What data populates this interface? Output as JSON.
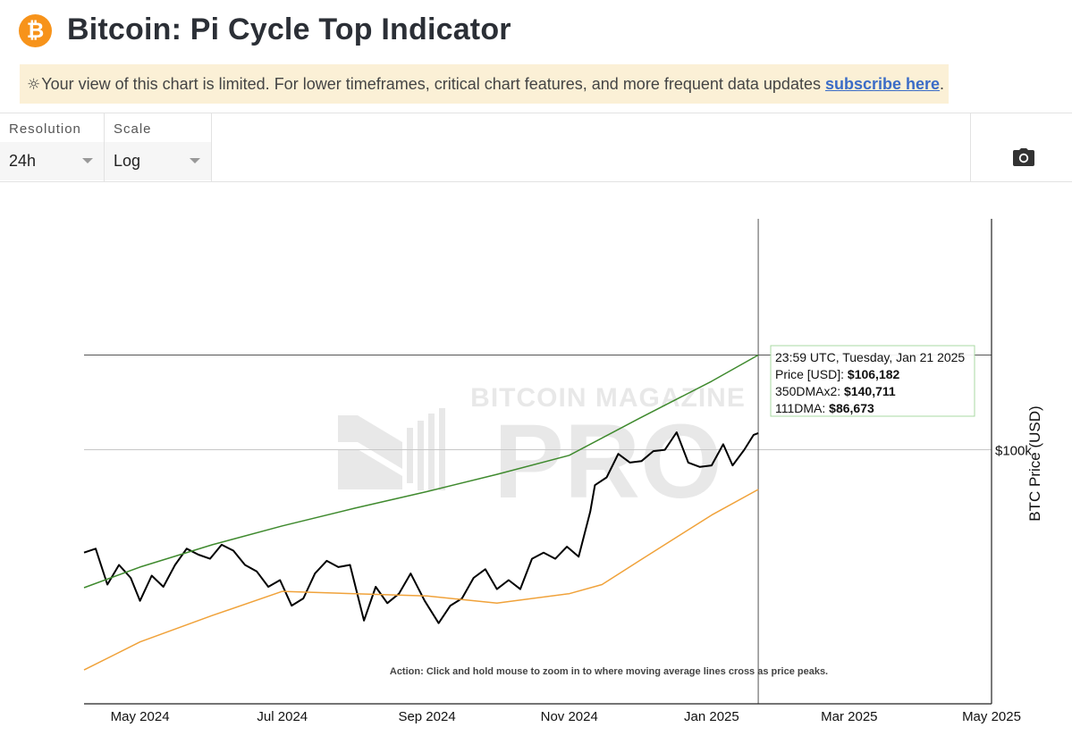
{
  "header": {
    "logo_glyph": "₿",
    "title": "Bitcoin: Pi Cycle Top Indicator"
  },
  "notice": {
    "icon": "sun-icon",
    "icon_glyph": "☼",
    "text": "Your view of this chart is limited. For lower timeframes, critical chart features, and more frequent data updates ",
    "link_text": "subscribe here",
    "suffix": "."
  },
  "controls": {
    "resolution": {
      "label": "Resolution",
      "value": "24h"
    },
    "scale": {
      "label": "Scale",
      "value": "Log"
    },
    "screenshot_icon": "camera-icon"
  },
  "chart_data": {
    "type": "line",
    "y_scale": "log",
    "ylabel": "BTC Price (USD)",
    "y_tick_labels": [
      "$100k"
    ],
    "x_tick_labels": [
      "May 2024",
      "Jul 2024",
      "Sep 2024",
      "Nov 2024",
      "Jan 2025",
      "Mar 2025",
      "May 2025"
    ],
    "x_tick_dates": [
      "2024-05-01",
      "2024-07-01",
      "2024-09-01",
      "2024-11-01",
      "2025-01-01",
      "2025-03-01",
      "2025-05-01"
    ],
    "x_range": [
      "2024-04-07",
      "2025-05-01"
    ],
    "y_range": [
      40000,
      230000
    ],
    "watermark": "BITCOIN MAGAZINE PRO",
    "annotation": "Action: Click and hold mouse to zoom in to where moving average lines cross as price peaks.",
    "colors": {
      "price": "#000000",
      "dma350x2": "#3f8a2e",
      "dma111": "#f0a23a"
    },
    "series": [
      {
        "name": "Price [USD]",
        "key": "price",
        "x": [
          "2024-04-07",
          "2024-04-12",
          "2024-04-17",
          "2024-04-22",
          "2024-04-27",
          "2024-05-01",
          "2024-05-06",
          "2024-05-11",
          "2024-05-16",
          "2024-05-21",
          "2024-05-26",
          "2024-05-31",
          "2024-06-05",
          "2024-06-10",
          "2024-06-15",
          "2024-06-20",
          "2024-06-25",
          "2024-06-30",
          "2024-07-05",
          "2024-07-10",
          "2024-07-15",
          "2024-07-20",
          "2024-07-25",
          "2024-07-30",
          "2024-08-05",
          "2024-08-10",
          "2024-08-15",
          "2024-08-20",
          "2024-08-25",
          "2024-08-31",
          "2024-09-06",
          "2024-09-11",
          "2024-09-16",
          "2024-09-21",
          "2024-09-26",
          "2024-10-01",
          "2024-10-06",
          "2024-10-11",
          "2024-10-16",
          "2024-10-21",
          "2024-10-26",
          "2024-10-31",
          "2024-11-05",
          "2024-11-10",
          "2024-11-12",
          "2024-11-17",
          "2024-11-22",
          "2024-11-27",
          "2024-12-02",
          "2024-12-07",
          "2024-12-12",
          "2024-12-17",
          "2024-12-22",
          "2024-12-27",
          "2025-01-01",
          "2025-01-06",
          "2025-01-10",
          "2025-01-15",
          "2025-01-19",
          "2025-01-21"
        ],
        "y": [
          69000,
          70000,
          61500,
          66000,
          63000,
          58000,
          63500,
          61000,
          66000,
          70000,
          68500,
          67500,
          71000,
          69500,
          66000,
          64500,
          61000,
          62500,
          57000,
          58500,
          64000,
          67000,
          65500,
          66000,
          54000,
          61000,
          57500,
          59500,
          64000,
          58000,
          53500,
          57000,
          58500,
          63000,
          65000,
          60500,
          62500,
          60500,
          67500,
          69000,
          67500,
          70500,
          68000,
          80000,
          88000,
          90500,
          98500,
          95500,
          96000,
          99500,
          100000,
          106500,
          95500,
          94000,
          94500,
          102000,
          94500,
          100000,
          105500,
          106182
        ]
      },
      {
        "name": "350DMAx2",
        "key": "dma350x2",
        "x": [
          "2024-04-07",
          "2024-05-01",
          "2024-06-01",
          "2024-07-01",
          "2024-08-01",
          "2024-09-01",
          "2024-10-01",
          "2024-11-01",
          "2024-12-01",
          "2025-01-01",
          "2025-01-21"
        ],
        "y": [
          60800,
          65500,
          71000,
          76000,
          81000,
          86000,
          91500,
          98000,
          112000,
          128000,
          140711
        ]
      },
      {
        "name": "111DMA",
        "key": "dma111",
        "x": [
          "2024-04-07",
          "2024-05-01",
          "2024-06-01",
          "2024-07-01",
          "2024-08-01",
          "2024-09-01",
          "2024-10-01",
          "2024-11-01",
          "2024-11-15",
          "2024-12-01",
          "2025-01-01",
          "2025-01-21"
        ],
        "y": [
          45200,
          50000,
          55000,
          60000,
          59500,
          59000,
          57500,
          59500,
          61500,
          67000,
          79000,
          86673
        ]
      }
    ],
    "crosshair": {
      "date": "2025-01-21",
      "header": "23:59 UTC, Tuesday, Jan 21 2025",
      "rows": [
        {
          "label": "Price [USD]: ",
          "value": "$106,182"
        },
        {
          "label": "350DMAx2: ",
          "value": "$140,711"
        },
        {
          "label": "111DMA:  ",
          "value": "$86,673"
        }
      ]
    }
  }
}
